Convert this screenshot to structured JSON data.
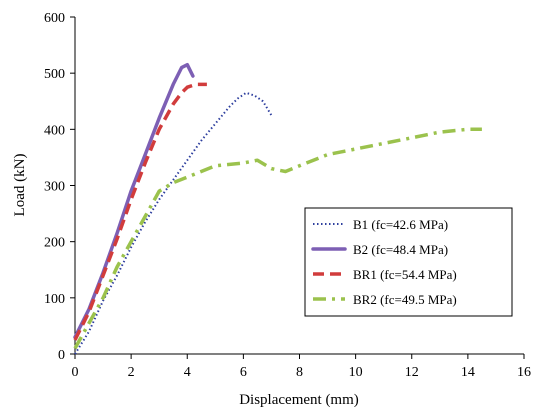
{
  "chart_data": {
    "type": "line",
    "title": "",
    "xlabel": "Displacement (mm)",
    "ylabel": "Load (kN)",
    "xlim": [
      0,
      16
    ],
    "ylim": [
      0,
      600
    ],
    "xticks": [
      0,
      2,
      4,
      6,
      8,
      10,
      12,
      14,
      16
    ],
    "yticks": [
      0,
      100,
      200,
      300,
      400,
      500,
      600
    ],
    "grid": false,
    "legend_position": "bottom-right",
    "series": [
      {
        "name": "B1 (fc=42.6 MPa)",
        "color": "#2e3f9e",
        "dash": "dotted",
        "x": [
          0,
          0.5,
          1.0,
          1.5,
          2.0,
          2.5,
          3.0,
          3.5,
          4.0,
          4.5,
          5.0,
          5.5,
          5.8,
          6.1,
          6.4,
          6.7,
          7.0
        ],
        "y": [
          0,
          40,
          95,
          140,
          190,
          235,
          275,
          310,
          345,
          380,
          410,
          440,
          455,
          465,
          460,
          450,
          425
        ]
      },
      {
        "name": "B2 (fc=48.4 MPa)",
        "color": "#7d5fb4",
        "dash": "solid",
        "x": [
          0,
          0.5,
          1.0,
          1.5,
          2.0,
          2.5,
          3.0,
          3.5,
          3.8,
          4.0,
          4.2
        ],
        "y": [
          30,
          80,
          145,
          215,
          290,
          355,
          420,
          480,
          510,
          515,
          495
        ]
      },
      {
        "name": "BR1 (fc=54.4 MPa)",
        "color": "#d13c3c",
        "dash": "dashed",
        "x": [
          0,
          0.5,
          1.0,
          1.5,
          2.0,
          2.5,
          3.0,
          3.5,
          3.8,
          4.0,
          4.3,
          4.7
        ],
        "y": [
          25,
          75,
          140,
          205,
          275,
          340,
          400,
          445,
          465,
          475,
          480,
          480
        ]
      },
      {
        "name": "BR2 (fc=49.5 MPa)",
        "color": "#9bc24d",
        "dash": "dash-dot",
        "x": [
          0,
          0.5,
          1.0,
          1.5,
          2.0,
          2.5,
          3.0,
          3.5,
          4.0,
          5.0,
          6.0,
          6.5,
          7.0,
          7.5,
          8.0,
          9.0,
          10.0,
          11.0,
          12.0,
          13.0,
          14.0,
          14.5
        ],
        "y": [
          10,
          55,
          100,
          155,
          200,
          245,
          290,
          305,
          315,
          335,
          340,
          345,
          330,
          325,
          335,
          355,
          365,
          375,
          385,
          395,
          400,
          400
        ]
      }
    ]
  }
}
